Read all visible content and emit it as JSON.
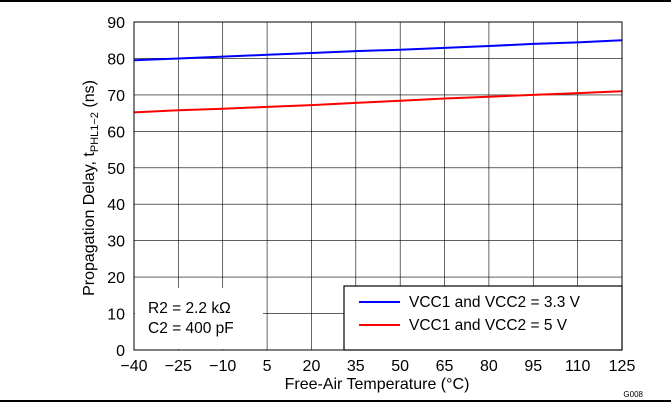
{
  "figure_id": "G008",
  "chart_data": {
    "type": "line",
    "title": "",
    "xlabel": "Free-Air Temperature (°C)",
    "ylabel": {
      "prefix": "Propagation Delay, t",
      "subscript": "PHL1−2",
      "suffix": " (ns)"
    },
    "xlim": [
      -40,
      125
    ],
    "ylim": [
      0,
      90
    ],
    "x_ticks": [
      -40,
      -25,
      -10,
      5,
      20,
      35,
      50,
      65,
      80,
      95,
      110,
      125
    ],
    "x_tick_labels": [
      "−40",
      "−25",
      "−10",
      "5",
      "20",
      "35",
      "50",
      "65",
      "80",
      "95",
      "110",
      "125"
    ],
    "y_ticks": [
      0,
      10,
      20,
      30,
      40,
      50,
      60,
      70,
      80,
      90
    ],
    "y_tick_labels": [
      "0",
      "10",
      "20",
      "30",
      "40",
      "50",
      "60",
      "70",
      "80",
      "90"
    ],
    "grid": true,
    "legend_position": "bottom-right",
    "annotations": {
      "line1": "R2 = 2.2 kΩ",
      "line2": "C2 = 400 pF"
    },
    "series": [
      {
        "name": "VCC1 and VCC2 = 3.3 V",
        "color": "#0000ff",
        "x": [
          -40,
          -25,
          -10,
          5,
          20,
          35,
          50,
          65,
          80,
          95,
          110,
          125
        ],
        "y": [
          79.5,
          80,
          80.5,
          81,
          81.5,
          82,
          82.4,
          82.9,
          83.4,
          84,
          84.4,
          85
        ]
      },
      {
        "name": "VCC1 and VCC2 = 5 V",
        "color": "#ff0000",
        "x": [
          -40,
          -25,
          -10,
          5,
          20,
          35,
          50,
          65,
          80,
          95,
          110,
          125
        ],
        "y": [
          65.2,
          65.8,
          66.2,
          66.7,
          67.2,
          67.8,
          68.4,
          69,
          69.5,
          70,
          70.5,
          71
        ]
      }
    ]
  }
}
